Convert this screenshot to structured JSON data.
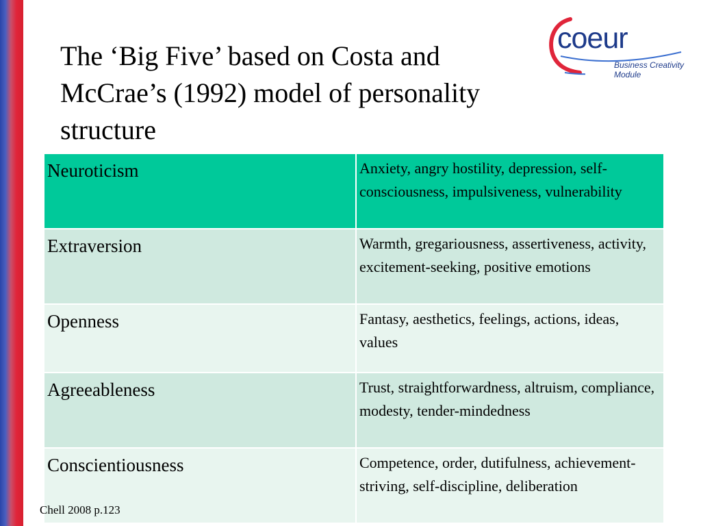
{
  "slide": {
    "title": "The ‘Big Five’ based on Costa and McCrae’s (1992) model of personality structure",
    "source": "Chell 2008 p.123"
  },
  "logo": {
    "word": "coeur",
    "subtitle_line1": "Business Creativity",
    "subtitle_line2": "Module",
    "colors": {
      "blue": "#1d3a8a",
      "red": "#e0253a"
    }
  },
  "table": {
    "rows": [
      {
        "trait": "Neuroticism",
        "facets": "Anxiety, angry hostility, depression, self-consciousness, impulsiveness, vulnerability"
      },
      {
        "trait": "Extraversion",
        "facets": "Warmth, gregariousness, assertiveness, activity, excitement-seeking, positive emotions"
      },
      {
        "trait": "Openness",
        "facets": "Fantasy, aesthetics, feelings, actions, ideas, values"
      },
      {
        "trait": "Agreeableness",
        "facets": "Trust, straightforwardness, altruism, compliance, modesty, tender-mindedness"
      },
      {
        "trait": "Conscientiousness",
        "facets": "Competence, order, dutifulness, achievement-striving, self-discipline, deliberation"
      }
    ],
    "colors": {
      "header": "#00c99a",
      "band_dark": "#cfe9df",
      "band_light": "#e8f5ef"
    }
  }
}
